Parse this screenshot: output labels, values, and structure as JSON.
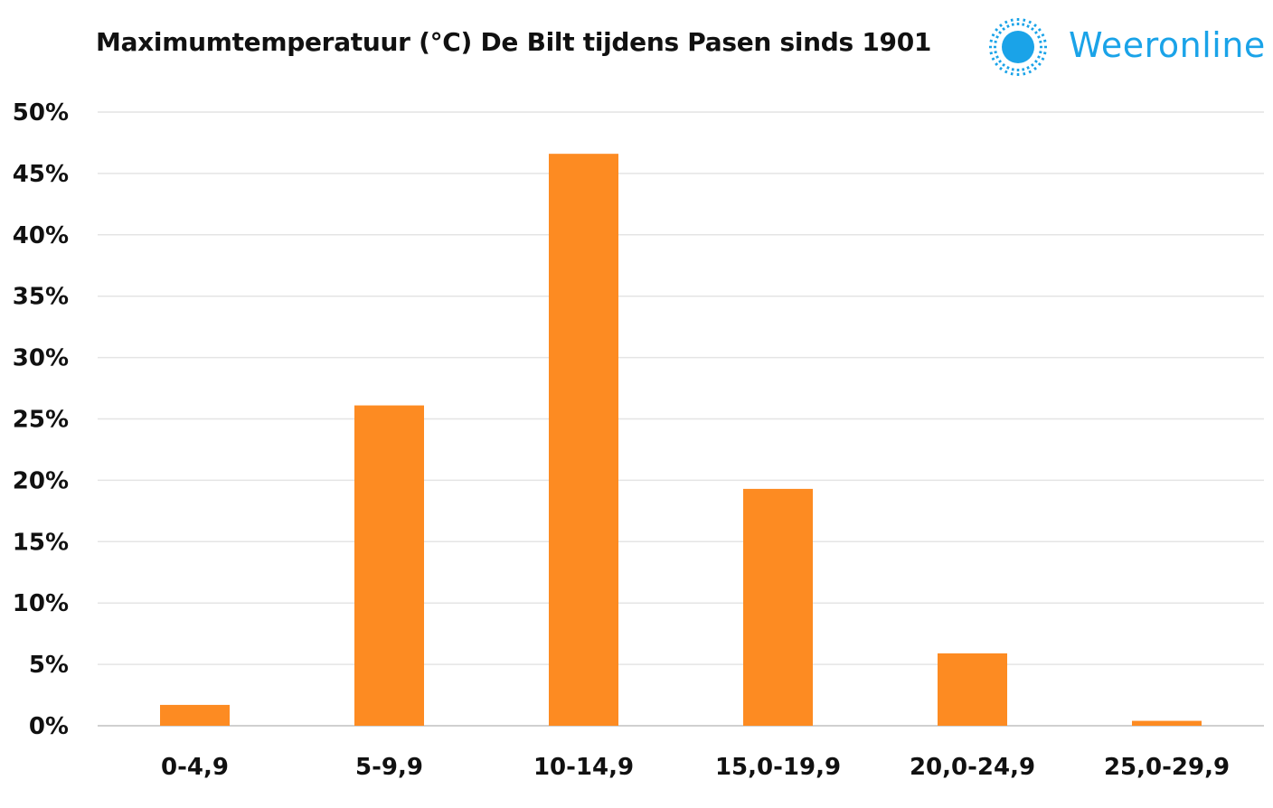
{
  "title": "Maximumtemperatuur (°C) De Bilt tijdens Pasen sinds 1901",
  "logo": {
    "text": "Weeronline",
    "icon": "sun-icon",
    "color": "#1aa3e8"
  },
  "chart_data": {
    "type": "bar",
    "categories": [
      "0-4,9",
      "5-9,9",
      "10-14,9",
      "15,0-19,9",
      "20,0-24,9",
      "25,0-29,9"
    ],
    "values": [
      1.7,
      26.1,
      46.6,
      19.3,
      5.9,
      0.4
    ],
    "ylim": [
      0,
      50
    ],
    "yticks": [
      "0%",
      "5%",
      "10%",
      "15%",
      "20%",
      "25%",
      "30%",
      "35%",
      "40%",
      "45%",
      "50%"
    ],
    "bar_color": "#fd8b22",
    "grid": true,
    "legend": "none",
    "xlabel": "",
    "ylabel": ""
  }
}
